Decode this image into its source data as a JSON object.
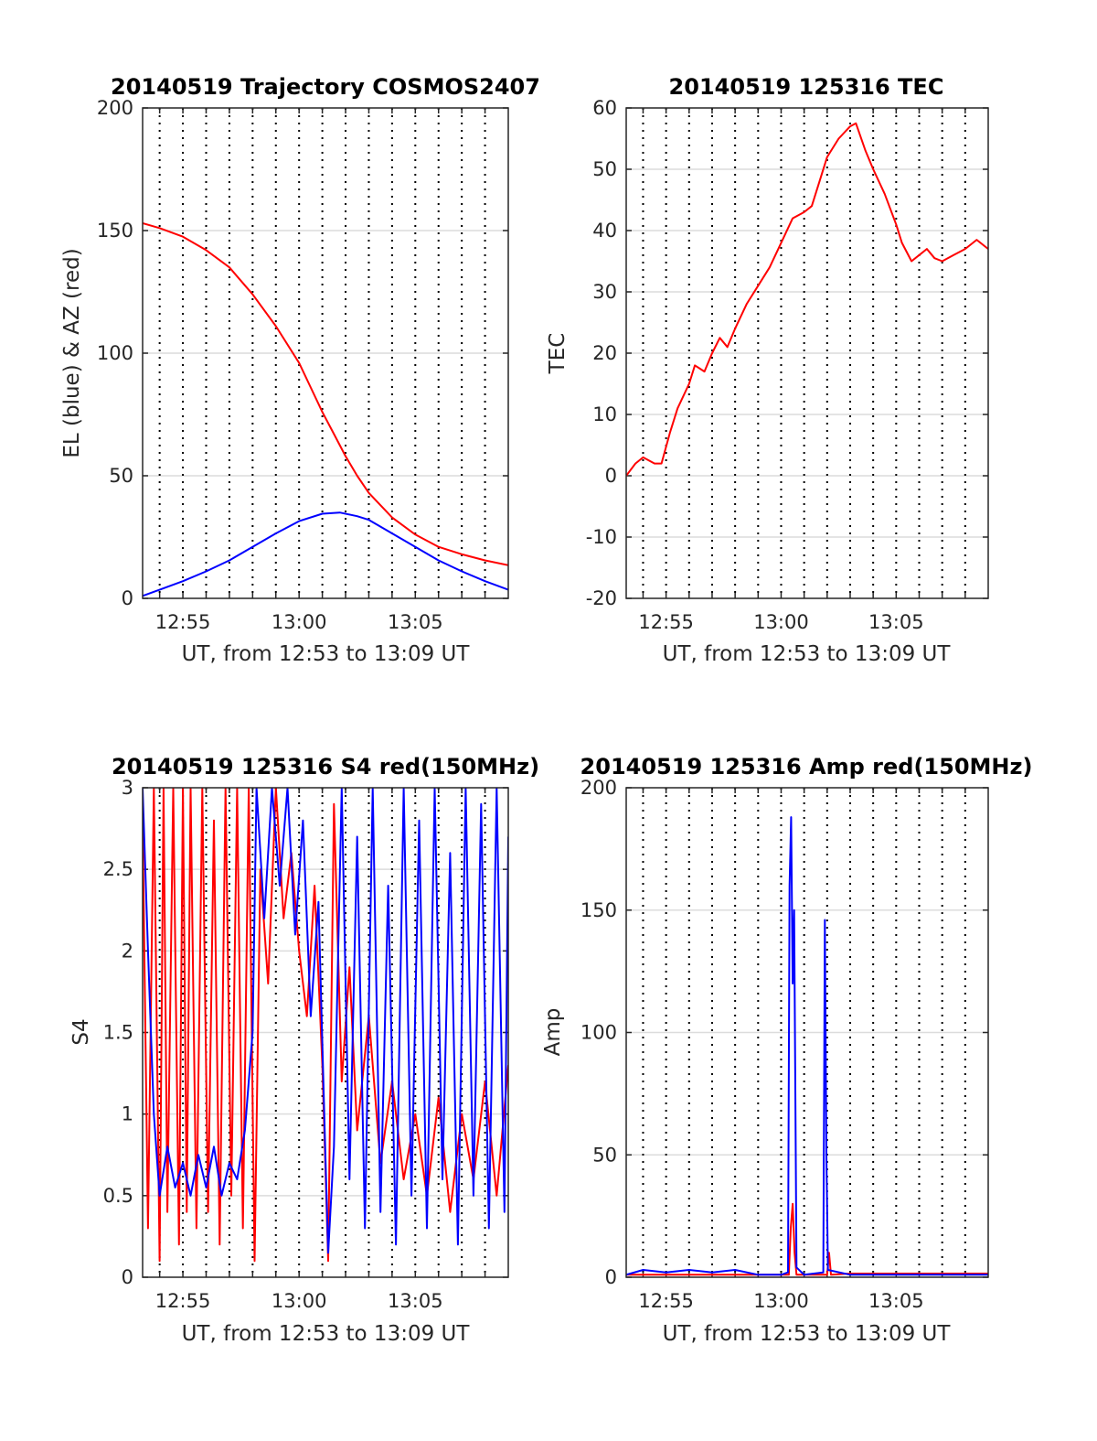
{
  "colors": {
    "el": "#0000ff",
    "az": "#ff0000",
    "tec": "#ff0000",
    "s4_red": "#ff0000",
    "s4_blue": "#0000ff",
    "amp_red": "#ff0000",
    "amp_blue": "#0000ff"
  },
  "chart_data": [
    {
      "id": "trajectory",
      "type": "line",
      "title": "20140519 Trajectory COSMOS2407",
      "xlabel": "UT, from 12:53 to 13:09 UT",
      "ylabel": "EL (blue) & AZ (red)",
      "xlim": [
        "12:53:16",
        "13:09:00"
      ],
      "ylim": [
        0,
        200
      ],
      "yticks": [
        0,
        50,
        100,
        150,
        200
      ],
      "xticks": [
        "12:55",
        "13:00",
        "13:05"
      ],
      "xgrid_minutes": [
        "12:54",
        "12:55",
        "12:56",
        "12:57",
        "12:58",
        "12:59",
        "13:00",
        "13:01",
        "13:02",
        "13:03",
        "13:04",
        "13:05",
        "13:06",
        "13:07",
        "13:08"
      ],
      "grid": true,
      "series": [
        {
          "color": "#ff0000",
          "points": [
            [
              "12:53:16",
              153
            ],
            [
              "12:54:00",
              151
            ],
            [
              "12:55:00",
              147.5
            ],
            [
              "12:56:00",
              142
            ],
            [
              "12:57:00",
              135
            ],
            [
              "12:58:00",
              124
            ],
            [
              "12:59:00",
              111
            ],
            [
              "13:00:00",
              96
            ],
            [
              "13:00:30",
              86
            ],
            [
              "13:01:00",
              76
            ],
            [
              "13:01:30",
              67
            ],
            [
              "13:02:00",
              58
            ],
            [
              "13:02:30",
              50
            ],
            [
              "13:03:00",
              43
            ],
            [
              "13:04:00",
              33
            ],
            [
              "13:05:00",
              26
            ],
            [
              "13:06:00",
              21
            ],
            [
              "13:07:00",
              18
            ],
            [
              "13:08:00",
              15.5
            ],
            [
              "13:09:00",
              13.5
            ]
          ]
        },
        {
          "color": "#0000ff",
          "points": [
            [
              "12:53:16",
              1
            ],
            [
              "12:54:00",
              3.5
            ],
            [
              "12:55:00",
              7
            ],
            [
              "12:56:00",
              11
            ],
            [
              "12:57:00",
              15.5
            ],
            [
              "12:58:00",
              21
            ],
            [
              "12:59:00",
              26.5
            ],
            [
              "13:00:00",
              31.5
            ],
            [
              "13:01:00",
              34.5
            ],
            [
              "13:01:45",
              35
            ],
            [
              "13:02:30",
              33.5
            ],
            [
              "13:03:00",
              32
            ],
            [
              "13:04:00",
              26.5
            ],
            [
              "13:05:00",
              21
            ],
            [
              "13:06:00",
              15.5
            ],
            [
              "13:07:00",
              11
            ],
            [
              "13:08:00",
              7
            ],
            [
              "13:09:00",
              3.5
            ]
          ]
        }
      ]
    },
    {
      "id": "tec",
      "type": "line",
      "title": "20140519 125316 TEC",
      "xlabel": "UT, from 12:53 to 13:09 UT",
      "ylabel": "TEC",
      "xlim": [
        "12:53:16",
        "13:09:00"
      ],
      "ylim": [
        -20,
        60
      ],
      "yticks": [
        -20,
        -10,
        0,
        10,
        20,
        30,
        40,
        50,
        60
      ],
      "xticks": [
        "12:55",
        "13:00",
        "13:05"
      ],
      "xgrid_minutes": [
        "12:54",
        "12:55",
        "12:56",
        "12:57",
        "12:58",
        "12:59",
        "13:00",
        "13:01",
        "13:02",
        "13:03",
        "13:04",
        "13:05",
        "13:06",
        "13:07",
        "13:08"
      ],
      "grid": true,
      "series": [
        {
          "color": "#ff0000",
          "points": [
            [
              "12:53:16",
              0
            ],
            [
              "12:53:40",
              2
            ],
            [
              "12:54:00",
              3
            ],
            [
              "12:54:30",
              2
            ],
            [
              "12:54:48",
              2
            ],
            [
              "12:55:10",
              7
            ],
            [
              "12:55:30",
              11
            ],
            [
              "12:56:00",
              15
            ],
            [
              "12:56:15",
              18
            ],
            [
              "12:56:40",
              17
            ],
            [
              "12:57:00",
              20
            ],
            [
              "12:57:20",
              22.5
            ],
            [
              "12:57:40",
              21
            ],
            [
              "12:58:00",
              24
            ],
            [
              "12:58:30",
              28
            ],
            [
              "12:59:00",
              31
            ],
            [
              "12:59:30",
              34
            ],
            [
              "13:00:00",
              38
            ],
            [
              "13:00:30",
              42
            ],
            [
              "13:01:00",
              43
            ],
            [
              "13:01:20",
              44
            ],
            [
              "13:01:40",
              48
            ],
            [
              "13:02:00",
              52
            ],
            [
              "13:02:30",
              55
            ],
            [
              "13:03:00",
              57
            ],
            [
              "13:03:15",
              57.5
            ],
            [
              "13:03:40",
              53
            ],
            [
              "13:04:00",
              50
            ],
            [
              "13:04:30",
              46
            ],
            [
              "13:05:00",
              41
            ],
            [
              "13:05:15",
              38
            ],
            [
              "13:05:40",
              35
            ],
            [
              "13:06:00",
              36
            ],
            [
              "13:06:20",
              37
            ],
            [
              "13:06:40",
              35.5
            ],
            [
              "13:07:00",
              35
            ],
            [
              "13:07:30",
              36
            ],
            [
              "13:08:00",
              37
            ],
            [
              "13:08:30",
              38.5
            ],
            [
              "13:09:00",
              37
            ]
          ]
        }
      ]
    },
    {
      "id": "s4",
      "type": "line",
      "title": "20140519 125316 S4 red(150MHz)",
      "xlabel": "UT, from 12:53 to 13:09 UT",
      "ylabel": "S4",
      "xlim": [
        "12:53:16",
        "13:09:00"
      ],
      "ylim": [
        0,
        3
      ],
      "yticks": [
        0,
        0.5,
        1,
        1.5,
        2,
        2.5,
        3
      ],
      "ytick_labels": [
        "0",
        "0.5",
        "1",
        "1.5",
        "2",
        "2.5",
        "3"
      ],
      "xticks": [
        "12:55",
        "13:00",
        "13:05"
      ],
      "xgrid_minutes": [
        "12:54",
        "12:55",
        "12:56",
        "12:57",
        "12:58",
        "12:59",
        "13:00",
        "13:01",
        "13:02",
        "13:03",
        "13:04",
        "13:05",
        "13:06",
        "13:07",
        "13:08"
      ],
      "grid": true,
      "series": [
        {
          "color": "#ff0000",
          "points": [
            [
              "12:53:16",
              2.8
            ],
            [
              "12:53:30",
              0.3
            ],
            [
              "12:53:45",
              3
            ],
            [
              "12:54:00",
              0.1
            ],
            [
              "12:54:10",
              3
            ],
            [
              "12:54:20",
              0.4
            ],
            [
              "12:54:35",
              3
            ],
            [
              "12:54:50",
              0.2
            ],
            [
              "12:55:00",
              3
            ],
            [
              "12:55:10",
              0.4
            ],
            [
              "12:55:20",
              3
            ],
            [
              "12:55:35",
              0.3
            ],
            [
              "12:55:50",
              3
            ],
            [
              "12:56:05",
              0.4
            ],
            [
              "12:56:20",
              2.8
            ],
            [
              "12:56:35",
              0.2
            ],
            [
              "12:56:50",
              3
            ],
            [
              "12:57:05",
              0.5
            ],
            [
              "12:57:20",
              3
            ],
            [
              "12:57:35",
              0.3
            ],
            [
              "12:57:50",
              3
            ],
            [
              "12:58:05",
              0.1
            ],
            [
              "12:58:20",
              2.5
            ],
            [
              "12:58:40",
              1.8
            ],
            [
              "12:59:00",
              3
            ],
            [
              "12:59:20",
              2.2
            ],
            [
              "12:59:40",
              2.6
            ],
            [
              "13:00:00",
              2.0
            ],
            [
              "13:00:20",
              1.6
            ],
            [
              "13:00:40",
              2.4
            ],
            [
              "13:01:00",
              1.3
            ],
            [
              "13:01:15",
              0.1
            ],
            [
              "13:01:30",
              2.9
            ],
            [
              "13:01:50",
              1.2
            ],
            [
              "13:02:10",
              1.9
            ],
            [
              "13:02:30",
              0.9
            ],
            [
              "13:03:00",
              1.6
            ],
            [
              "13:03:30",
              0.7
            ],
            [
              "13:04:00",
              1.2
            ],
            [
              "13:04:30",
              0.6
            ],
            [
              "13:05:00",
              1.0
            ],
            [
              "13:05:30",
              0.5
            ],
            [
              "13:06:00",
              1.1
            ],
            [
              "13:06:30",
              0.4
            ],
            [
              "13:07:00",
              1.0
            ],
            [
              "13:07:30",
              0.6
            ],
            [
              "13:08:00",
              1.2
            ],
            [
              "13:08:30",
              0.5
            ],
            [
              "13:09:00",
              1.3
            ]
          ]
        },
        {
          "color": "#0000ff",
          "points": [
            [
              "12:53:16",
              3
            ],
            [
              "12:53:30",
              2.0
            ],
            [
              "12:53:45",
              1.0
            ],
            [
              "12:54:00",
              0.5
            ],
            [
              "12:54:20",
              0.8
            ],
            [
              "12:54:40",
              0.55
            ],
            [
              "12:55:00",
              0.7
            ],
            [
              "12:55:20",
              0.5
            ],
            [
              "12:55:40",
              0.75
            ],
            [
              "12:56:00",
              0.55
            ],
            [
              "12:56:20",
              0.8
            ],
            [
              "12:56:40",
              0.5
            ],
            [
              "12:57:00",
              0.7
            ],
            [
              "12:57:20",
              0.6
            ],
            [
              "12:57:40",
              0.9
            ],
            [
              "12:58:00",
              1.5
            ],
            [
              "12:58:10",
              3
            ],
            [
              "12:58:30",
              2.2
            ],
            [
              "12:58:50",
              3
            ],
            [
              "12:59:10",
              2.4
            ],
            [
              "12:59:30",
              3
            ],
            [
              "12:59:50",
              2.1
            ],
            [
              "13:00:10",
              2.8
            ],
            [
              "13:00:30",
              1.6
            ],
            [
              "13:00:50",
              2.3
            ],
            [
              "13:01:05",
              1.0
            ],
            [
              "13:01:15",
              0.15
            ],
            [
              "13:01:30",
              0.8
            ],
            [
              "13:01:50",
              3
            ],
            [
              "13:02:10",
              0.6
            ],
            [
              "13:02:30",
              2.7
            ],
            [
              "13:02:50",
              0.3
            ],
            [
              "13:03:10",
              3
            ],
            [
              "13:03:30",
              0.4
            ],
            [
              "13:03:50",
              2.4
            ],
            [
              "13:04:10",
              0.2
            ],
            [
              "13:04:30",
              3
            ],
            [
              "13:04:50",
              0.5
            ],
            [
              "13:05:10",
              2.8
            ],
            [
              "13:05:30",
              0.3
            ],
            [
              "13:05:50",
              3
            ],
            [
              "13:06:10",
              0.6
            ],
            [
              "13:06:30",
              2.6
            ],
            [
              "13:06:50",
              0.2
            ],
            [
              "13:07:10",
              3
            ],
            [
              "13:07:30",
              0.5
            ],
            [
              "13:07:50",
              2.9
            ],
            [
              "13:08:10",
              0.3
            ],
            [
              "13:08:30",
              3
            ],
            [
              "13:08:50",
              0.4
            ],
            [
              "13:09:00",
              2.7
            ]
          ]
        }
      ]
    },
    {
      "id": "amp",
      "type": "line",
      "title": "20140519 125316 Amp red(150MHz)",
      "xlabel": "UT, from 12:53 to 13:09 UT",
      "ylabel": "Amp",
      "xlim": [
        "12:53:16",
        "13:09:00"
      ],
      "ylim": [
        0,
        200
      ],
      "yticks": [
        0,
        50,
        100,
        150,
        200
      ],
      "xticks": [
        "12:55",
        "13:00",
        "13:05"
      ],
      "xgrid_minutes": [
        "12:54",
        "12:55",
        "12:56",
        "12:57",
        "12:58",
        "12:59",
        "13:00",
        "13:01",
        "13:02",
        "13:03",
        "13:04",
        "13:05",
        "13:06",
        "13:07",
        "13:08"
      ],
      "grid": true,
      "series": [
        {
          "color": "#ff0000",
          "points": [
            [
              "12:53:16",
              1
            ],
            [
              "12:58:00",
              1
            ],
            [
              "13:00:20",
              1
            ],
            [
              "13:00:25",
              20
            ],
            [
              "13:00:30",
              30
            ],
            [
              "13:00:35",
              10
            ],
            [
              "13:00:40",
              1
            ],
            [
              "13:02:00",
              1
            ],
            [
              "13:02:05",
              10
            ],
            [
              "13:02:10",
              1
            ],
            [
              "13:03:00",
              1.5
            ],
            [
              "13:05:00",
              1.5
            ],
            [
              "13:07:00",
              1.5
            ],
            [
              "13:09:00",
              1.5
            ]
          ]
        },
        {
          "color": "#0000ff",
          "points": [
            [
              "12:53:16",
              1
            ],
            [
              "12:54:00",
              3
            ],
            [
              "12:55:00",
              2
            ],
            [
              "12:56:00",
              3
            ],
            [
              "12:57:00",
              2
            ],
            [
              "12:58:00",
              3
            ],
            [
              "12:59:00",
              1
            ],
            [
              "13:00:00",
              1
            ],
            [
              "13:00:18",
              2
            ],
            [
              "13:00:22",
              160
            ],
            [
              "13:00:26",
              188
            ],
            [
              "13:00:30",
              120
            ],
            [
              "13:00:34",
              150
            ],
            [
              "13:00:40",
              4
            ],
            [
              "13:01:00",
              1
            ],
            [
              "13:01:50",
              2
            ],
            [
              "13:01:54",
              146
            ],
            [
              "13:01:58",
              50
            ],
            [
              "13:02:02",
              3
            ],
            [
              "13:03:00",
              1
            ],
            [
              "13:05:00",
              1
            ],
            [
              "13:07:00",
              1
            ],
            [
              "13:09:00",
              1
            ]
          ]
        }
      ]
    }
  ]
}
